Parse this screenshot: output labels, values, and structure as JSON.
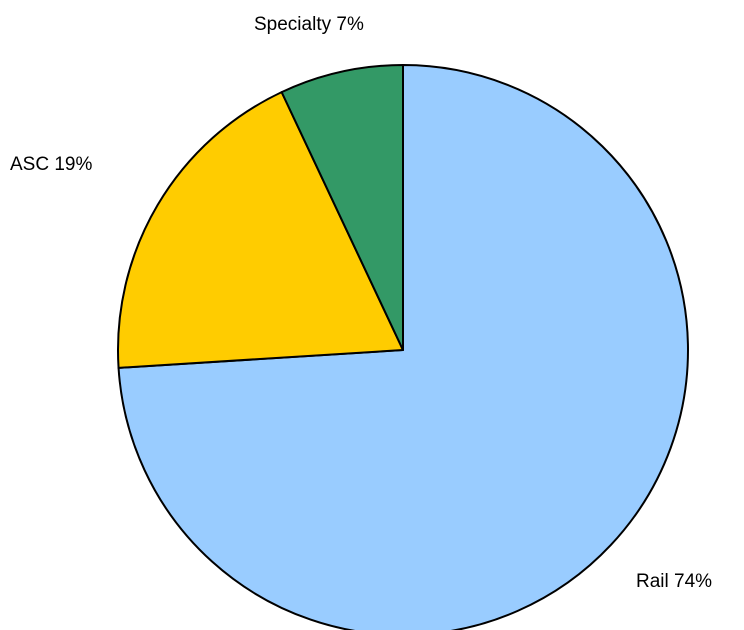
{
  "chart_data": {
    "type": "pie",
    "title": "",
    "start_angle_deg": 0,
    "direction": "clockwise",
    "slices": [
      {
        "name": "Rail",
        "value": 74,
        "label": "Rail 74%",
        "color": "#99ccff"
      },
      {
        "name": "ASC",
        "value": 19,
        "label": "ASC 19%",
        "color": "#ffcc00"
      },
      {
        "name": "Specialty",
        "value": 7,
        "label": "Specialty 7%",
        "color": "#339966"
      }
    ]
  }
}
